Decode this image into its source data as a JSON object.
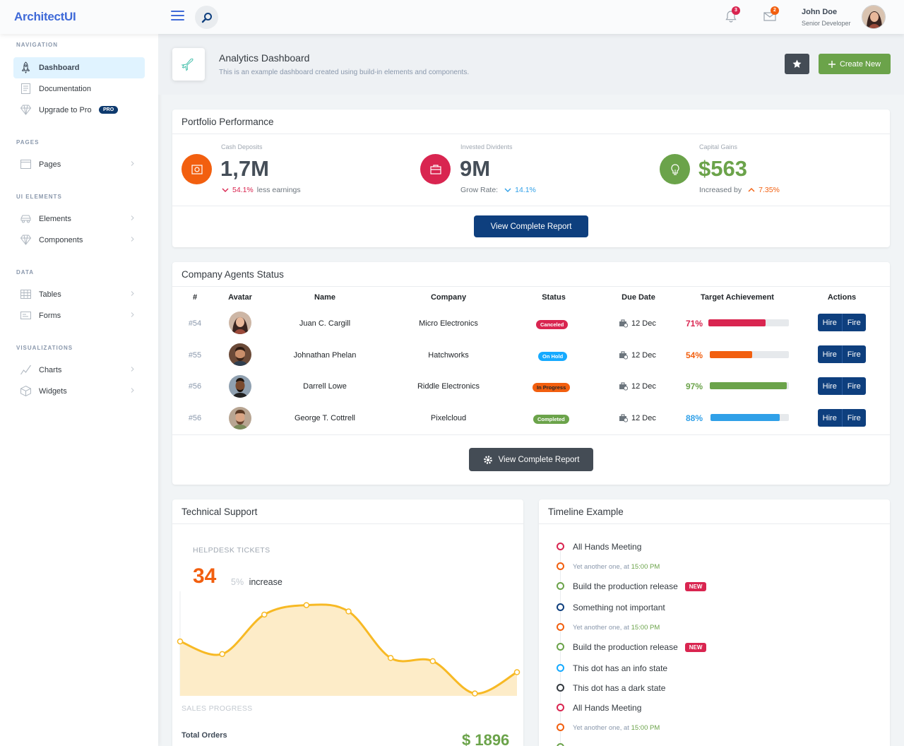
{
  "app": {
    "logo": "ArchitectUI"
  },
  "header": {
    "notifications_count": "3",
    "messages_count": "2",
    "user_name": "John Doe",
    "user_role": "Senior Developer"
  },
  "sidebar": {
    "sections": [
      {
        "heading": "NAVIGATION",
        "items": [
          {
            "label": "Dashboard",
            "icon": "rocket-icon",
            "active": true
          },
          {
            "label": "Documentation",
            "icon": "document-icon"
          },
          {
            "label": "Upgrade to Pro",
            "icon": "diamond-icon",
            "badge": "PRO"
          }
        ]
      },
      {
        "heading": "PAGES",
        "items": [
          {
            "label": "Pages",
            "icon": "browser-icon"
          }
        ]
      },
      {
        "heading": "UI ELEMENTS",
        "items": [
          {
            "label": "Elements",
            "icon": "car-icon"
          },
          {
            "label": "Components",
            "icon": "diamond-icon"
          }
        ]
      },
      {
        "heading": "DATA",
        "items": [
          {
            "label": "Tables",
            "icon": "table-icon"
          },
          {
            "label": "Forms",
            "icon": "forms-icon"
          }
        ]
      },
      {
        "heading": "VISUALIZATIONS",
        "items": [
          {
            "label": "Charts",
            "icon": "graph-icon"
          },
          {
            "label": "Widgets",
            "icon": "box-icon"
          }
        ]
      }
    ]
  },
  "page": {
    "title": "Analytics Dashboard",
    "subtitle": "This is an example dashboard created using build-in elements and components.",
    "create_label": "Create New"
  },
  "portfolio": {
    "title": "Portfolio Performance",
    "widgets": [
      {
        "caption": "Cash Deposits",
        "value": "1,7M",
        "delta": "54.1%",
        "note": "less earnings",
        "color": "#f25f0f"
      },
      {
        "caption": "Invested Dividents",
        "value": "9M",
        "prefix": "Grow Rate:",
        "delta": "14.1%",
        "color": "#d92550"
      },
      {
        "caption": "Capital Gains",
        "value": "$563",
        "prefix": "Increased by",
        "delta": "7.35%",
        "color": "#6ba34a"
      }
    ],
    "button": "View Complete Report"
  },
  "agents": {
    "title": "Company Agents Status",
    "columns": [
      "#",
      "Avatar",
      "Name",
      "Company",
      "Status",
      "Due Date",
      "Target Achievement",
      "Actions"
    ],
    "rows": [
      {
        "id": "#54",
        "name": "Juan C. Cargill",
        "company": "Micro Electronics",
        "status": "Canceled",
        "status_color": "#d92550",
        "due": "12 Dec",
        "pct_label": "71%",
        "pct": 0.71,
        "color": "#d92550"
      },
      {
        "id": "#55",
        "name": "Johnathan Phelan",
        "company": "Hatchworks",
        "status": "On Hold",
        "status_color": "#16aaff",
        "due": "12 Dec",
        "pct_label": "54%",
        "pct": 0.54,
        "color": "#f25f0f"
      },
      {
        "id": "#56",
        "name": "Darrell Lowe",
        "company": "Riddle Electronics",
        "status": "In Progress",
        "status_color": "#f25f0f",
        "due": "12 Dec",
        "pct_label": "97%",
        "pct": 0.97,
        "color": "#6ba34a"
      },
      {
        "id": "#56",
        "name": "George T. Cottrell",
        "company": "Pixelcloud",
        "status": "Completed",
        "status_color": "#6ba34a",
        "due": "12 Dec",
        "pct_label": "88%",
        "pct": 0.88,
        "color": "#30a0e8"
      }
    ],
    "hire": "Hire",
    "fire": "Fire",
    "button": "View Complete Report"
  },
  "support": {
    "title": "Technical Support",
    "caption": "HELPDESK TICKETS",
    "value": "34",
    "delta": "5%",
    "delta_note": "increase",
    "chart_caption": "SALES PROGRESS",
    "orders_label": "Total Orders",
    "orders_value": "$ 1896"
  },
  "chart_data": {
    "type": "area",
    "values": [
      54,
      38,
      88,
      100,
      92,
      33,
      29,
      -12,
      15
    ],
    "color": "#f7b924",
    "grid": false
  },
  "timeline": {
    "title": "Timeline Example",
    "items": [
      {
        "kind": "title",
        "text": "All Hands Meeting",
        "color": "#d92550"
      },
      {
        "kind": "small",
        "text": "Yet another one, at",
        "time": "15:00 PM",
        "color": "#f25f0f"
      },
      {
        "kind": "title",
        "text": "Build the production release",
        "badge": "NEW",
        "color": "#6ba34a"
      },
      {
        "kind": "title",
        "text": "Something not important",
        "color": "#0e3f7e"
      },
      {
        "kind": "small",
        "text": "Yet another one, at",
        "time": "15:00 PM",
        "color": "#f25f0f"
      },
      {
        "kind": "title",
        "text": "Build the production release",
        "badge": "NEW",
        "color": "#6ba34a"
      },
      {
        "kind": "title",
        "text": "This dot has an info state",
        "color": "#16aaff"
      },
      {
        "kind": "title",
        "text": "This dot has a dark state",
        "color": "#343a40"
      },
      {
        "kind": "title",
        "text": "All Hands Meeting",
        "color": "#d92550"
      },
      {
        "kind": "small",
        "text": "Yet another one, at",
        "time": "15:00 PM",
        "color": "#f25f0f"
      }
    ]
  }
}
